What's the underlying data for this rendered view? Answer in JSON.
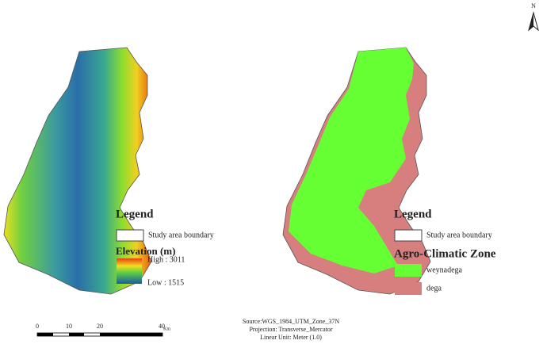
{
  "north_arrow": {
    "label": "N"
  },
  "elevation_map": {
    "legend": {
      "title": "Legend",
      "boundary": "Study area boundary",
      "elevation": {
        "title": "Elevation (m)",
        "high": "High : 3011",
        "low": "Low : 1515"
      }
    }
  },
  "zone_map": {
    "legend": {
      "title": "Legend",
      "boundary": "Study area boundary",
      "zone_title": "Agro-Climatic Zone",
      "items": [
        {
          "label": "weynadega",
          "color": "#66ff33"
        },
        {
          "label": "dega",
          "color": "#d77f7f"
        }
      ]
    }
  },
  "scale_bar": {
    "labels": [
      "0",
      "10",
      "20",
      "40"
    ],
    "unit": "Km"
  },
  "source": [
    "Source:WGS_1984_UTM_Zone_37N",
    "Projection: Transverse_Mercator",
    "Linear Unit: Meter (1.0)"
  ]
}
